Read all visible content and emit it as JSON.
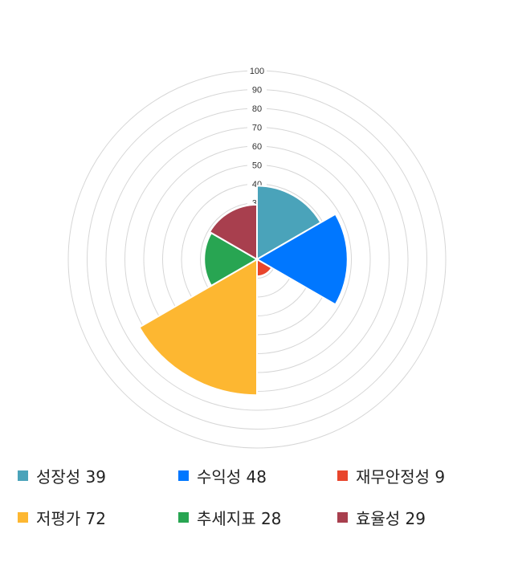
{
  "chart_data": {
    "type": "polar-area",
    "categories": [
      "성장성",
      "수익성",
      "재무안정성",
      "저평가",
      "추세지표",
      "효율성"
    ],
    "values": [
      39,
      48,
      9,
      72,
      28,
      29
    ],
    "colors": [
      "#4aa3ba",
      "#0077ff",
      "#e8452c",
      "#fdb731",
      "#28a552",
      "#a83f4e"
    ],
    "r_ticks": [
      10,
      20,
      30,
      40,
      50,
      60,
      70,
      80,
      90,
      100
    ],
    "rlim": [
      0,
      100
    ],
    "grid": true,
    "legend_position": "bottom",
    "legend_labels": [
      "성장성 39",
      "수익성 48",
      "재무안정성 9",
      "저평가 72",
      "추세지표 28",
      "효율성 29"
    ]
  }
}
